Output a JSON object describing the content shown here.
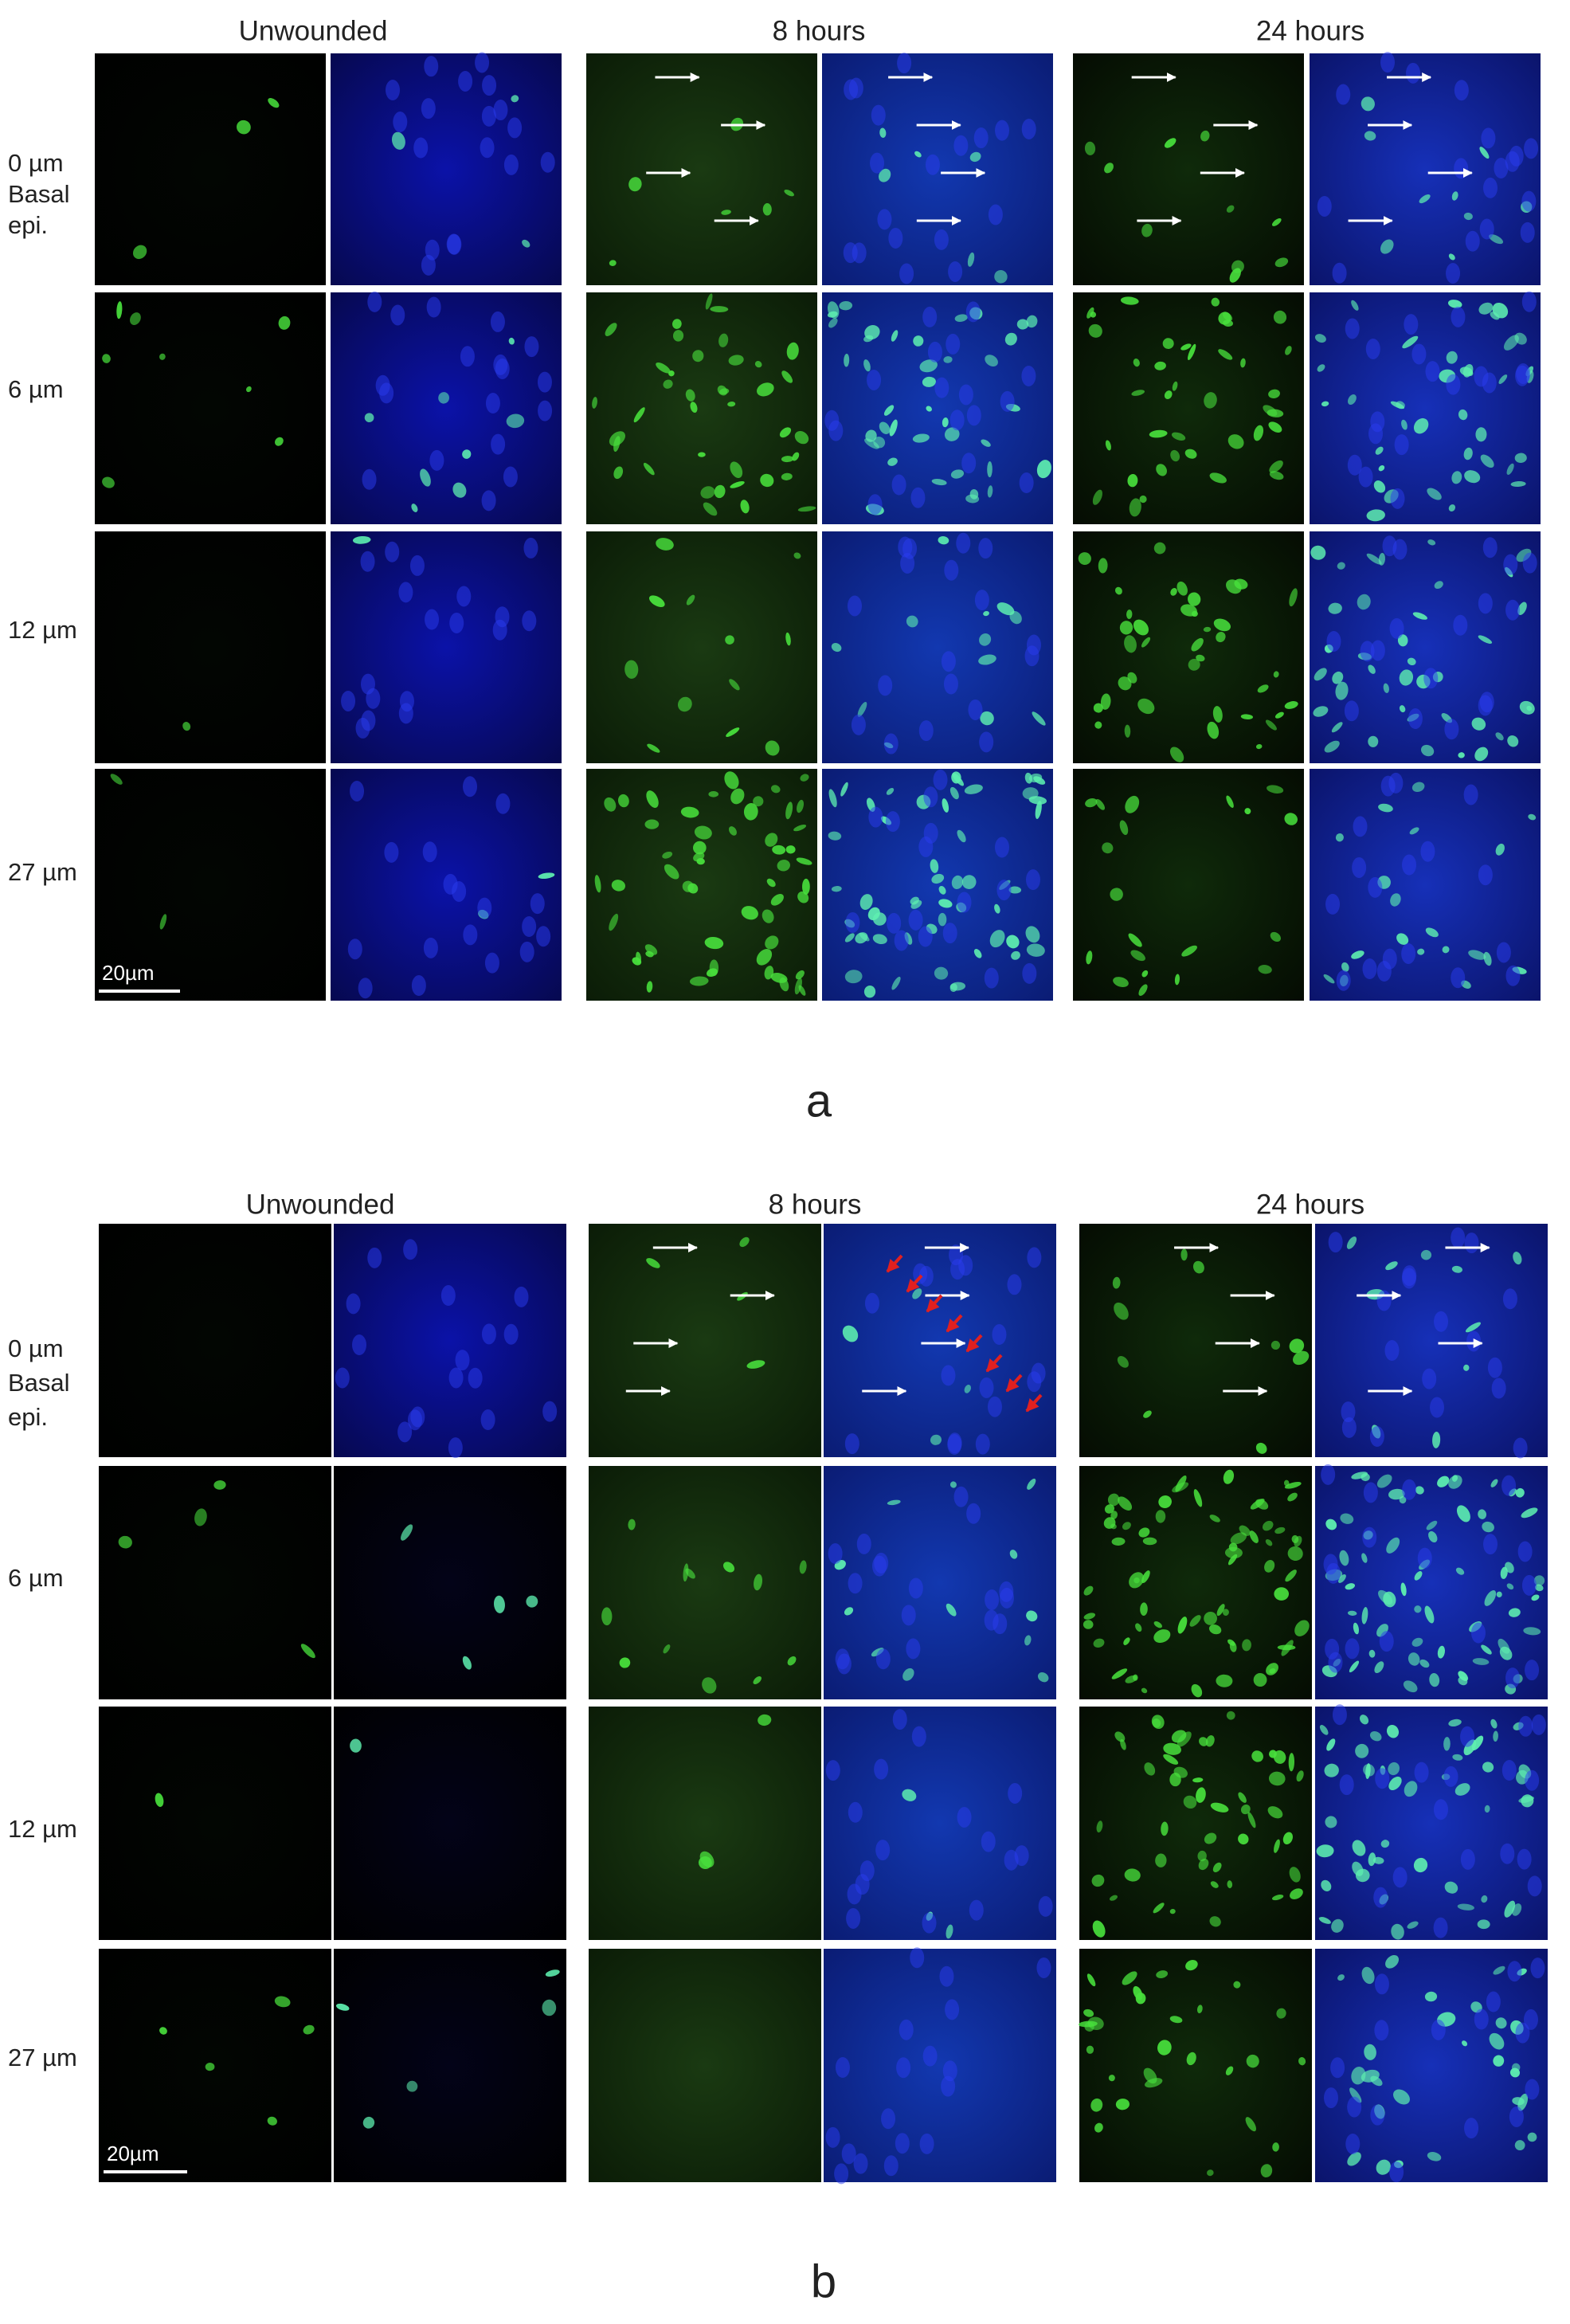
{
  "panels": [
    {
      "label": "a",
      "columns": [
        "Unwounded",
        "8 hours",
        "24 hours"
      ],
      "rows": [
        [
          "0 µm",
          "Basal",
          "epi."
        ],
        [
          "6 µm"
        ],
        [
          "12 µm"
        ],
        [
          "27 µm"
        ]
      ],
      "scale_bar": "20µm"
    },
    {
      "label": "b",
      "columns": [
        "Unwounded",
        "8 hours",
        "24 hours"
      ],
      "rows": [
        [
          "0 µm",
          "Basal",
          "epi."
        ],
        [
          "6 µm"
        ],
        [
          "12 µm"
        ],
        [
          "27 µm"
        ]
      ],
      "scale_bar": "20µm"
    }
  ]
}
